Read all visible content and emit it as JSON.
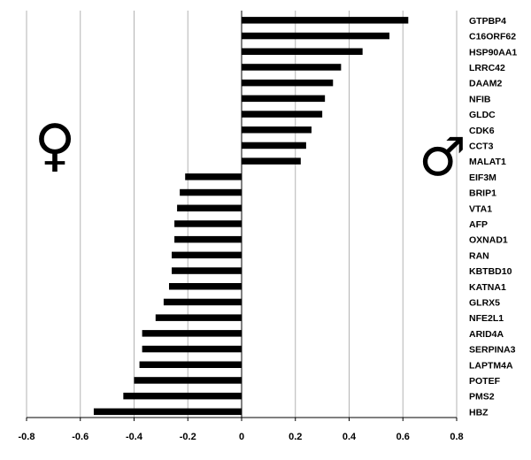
{
  "chart_data": {
    "type": "bar",
    "orientation": "horizontal",
    "title": "",
    "xlabel": "",
    "ylabel": "",
    "xlim": [
      -0.8,
      0.8
    ],
    "xticks": [
      "-0.8",
      "-0.6",
      "-0.4",
      "-0.2",
      "0",
      "0.2",
      "0.4",
      "0.6",
      "0.8"
    ],
    "xtick_values": [
      -0.8,
      -0.6,
      -0.4,
      -0.2,
      0,
      0.2,
      0.4,
      0.6,
      0.8
    ],
    "grid": "vertical",
    "bar_color": "#000000",
    "grid_color": "#b3b3b3",
    "categories": [
      "GTPBP4",
      "C16ORF62",
      "HSP90AA1",
      "LRRC42",
      "DAAM2",
      "NFIB",
      "GLDC",
      "CDK6",
      "CCT3",
      "MALAT1",
      "EIF3M",
      "BRIP1",
      "VTA1",
      "AFP",
      "OXNAD1",
      "RAN",
      "KBTBD10",
      "KATNA1",
      "GLRX5",
      "NFE2L1",
      "ARID4A",
      "SERPINA3",
      "LAPTM4A",
      "POTEF",
      "PMS2",
      "HBZ"
    ],
    "values": [
      0.62,
      0.55,
      0.45,
      0.37,
      0.34,
      0.31,
      0.3,
      0.26,
      0.24,
      0.22,
      -0.21,
      -0.23,
      -0.24,
      -0.25,
      -0.25,
      -0.26,
      -0.26,
      -0.27,
      -0.29,
      -0.32,
      -0.37,
      -0.37,
      -0.38,
      -0.4,
      -0.44,
      -0.55
    ],
    "annotations": [
      {
        "symbol": "♀",
        "meaning": "female",
        "side": "left"
      },
      {
        "symbol": "♂",
        "meaning": "male",
        "side": "right"
      }
    ]
  }
}
